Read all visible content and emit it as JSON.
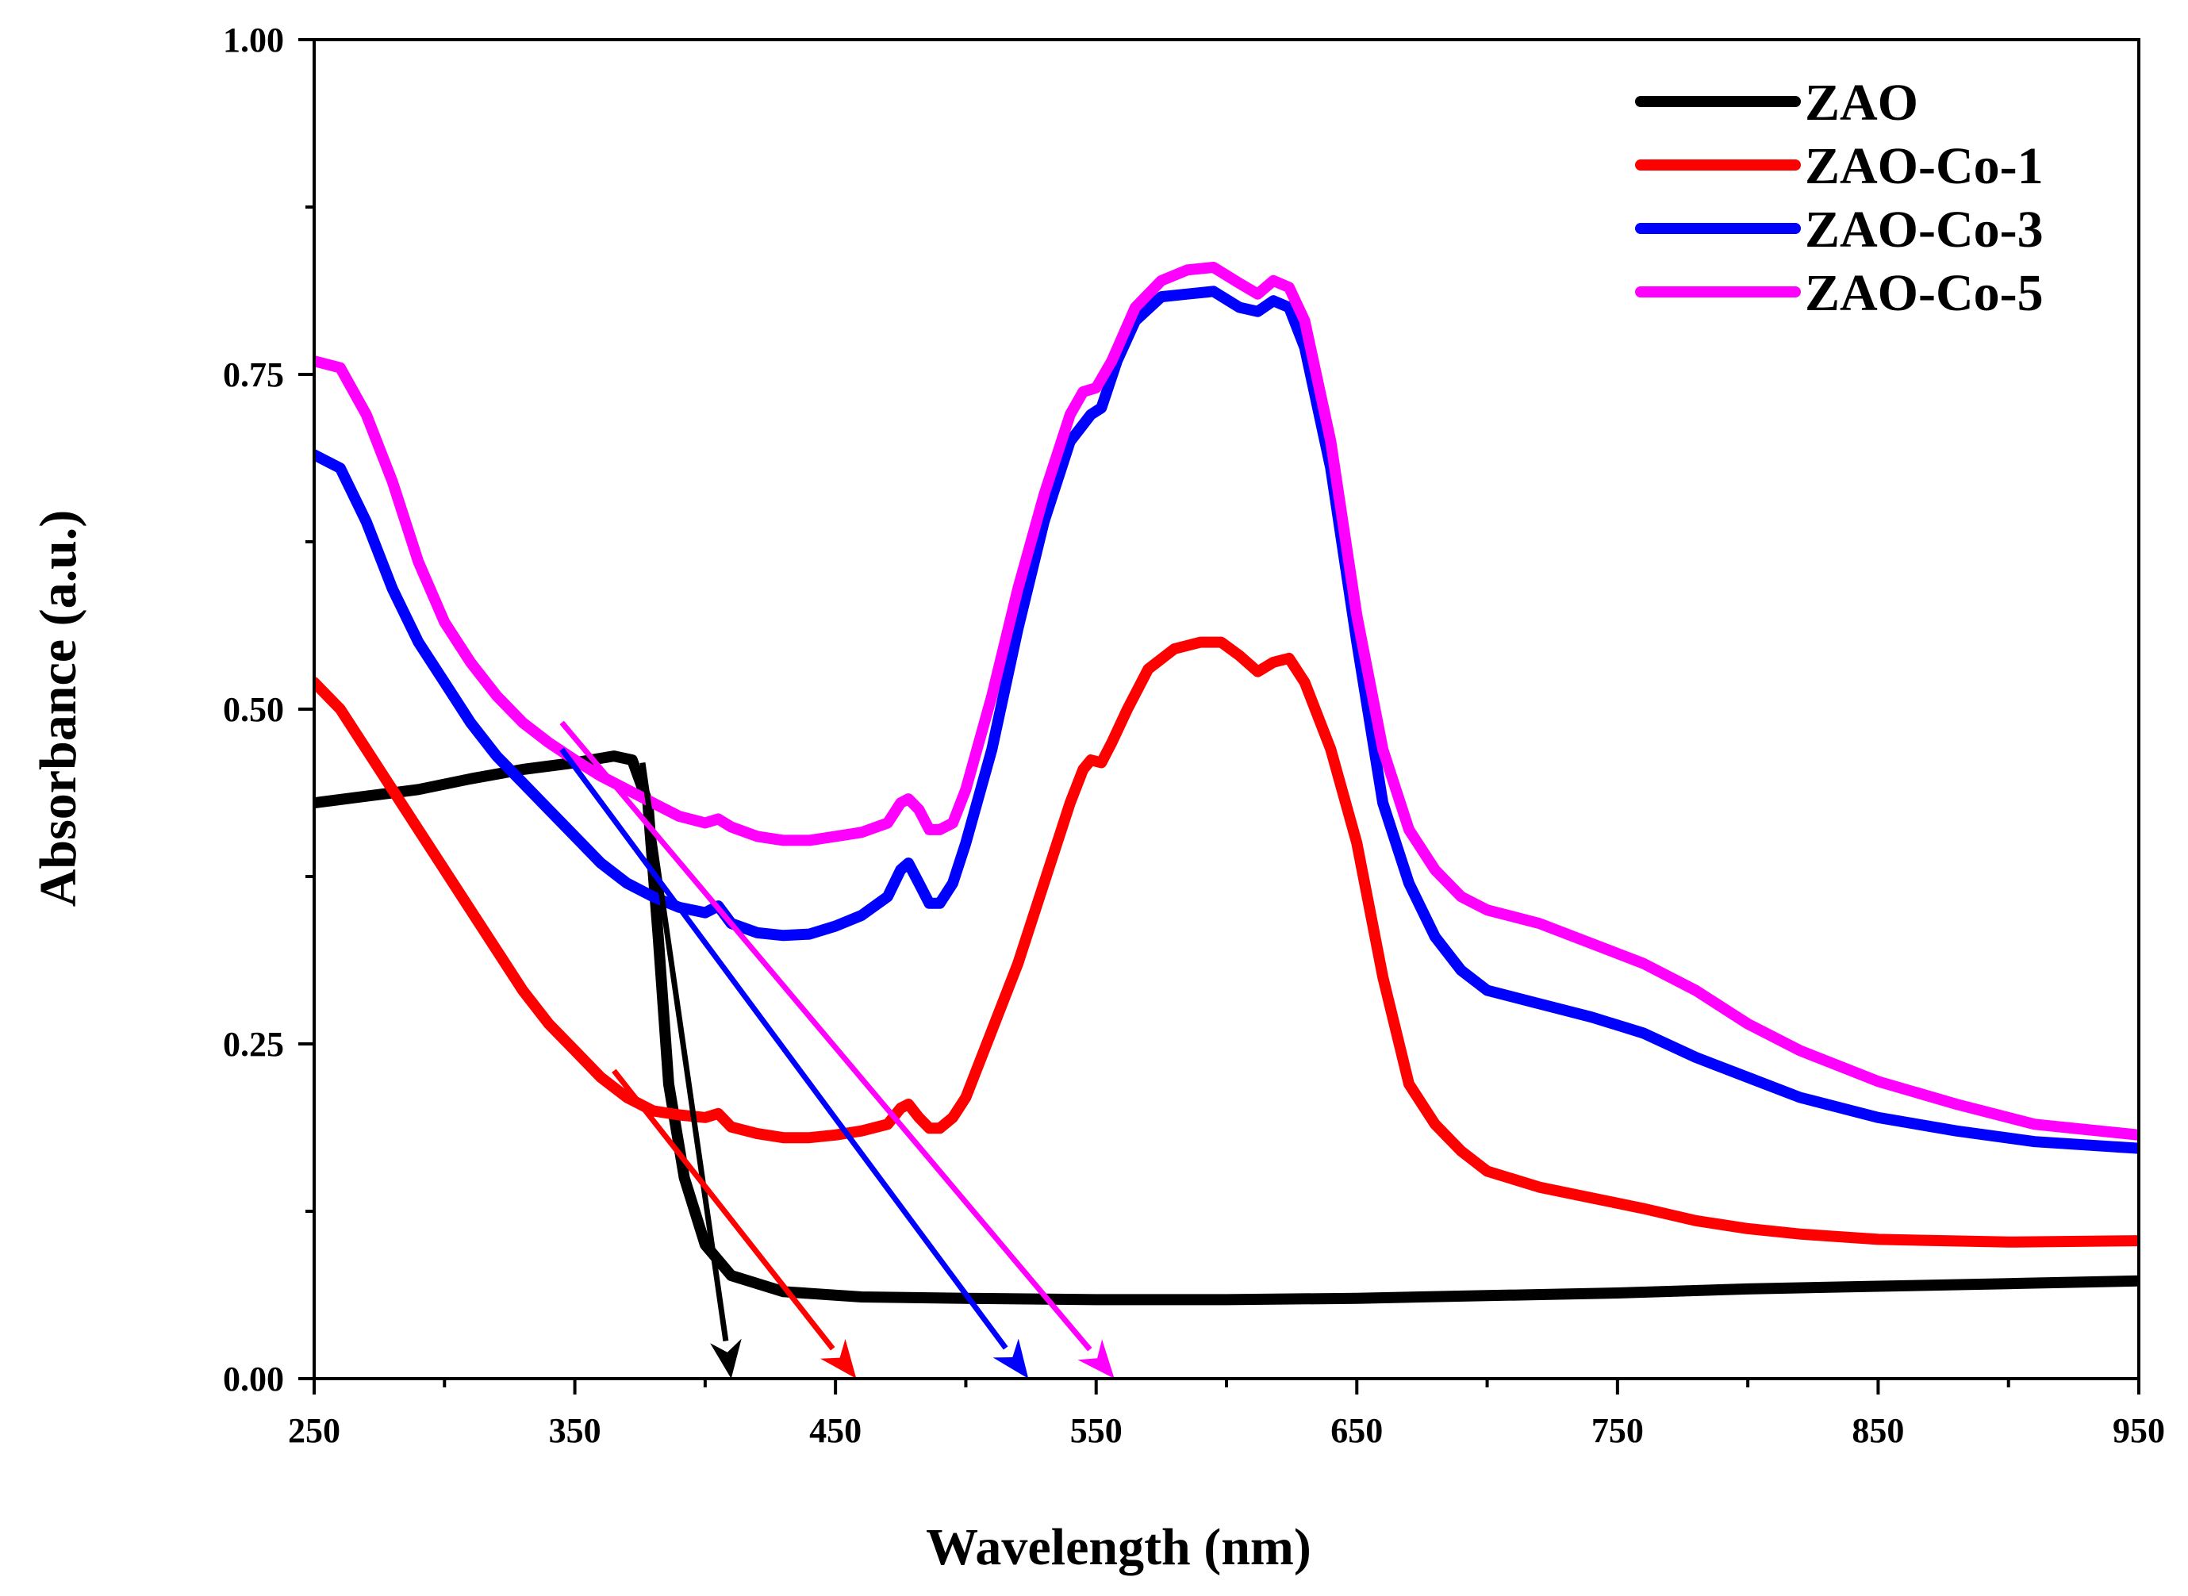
{
  "chart_data": {
    "type": "line",
    "title": "",
    "xlabel": "Wavelength (nm)",
    "ylabel": "Absorbance (a.u.)",
    "xlim": [
      250,
      950
    ],
    "ylim": [
      0,
      1
    ],
    "xticks": [
      250,
      350,
      450,
      550,
      650,
      750,
      850,
      950
    ],
    "yticks": [
      0,
      0.25,
      0.5,
      0.75,
      1
    ],
    "xtick_labels": [
      "250",
      "350",
      "450",
      "550",
      "650",
      "750",
      "850",
      "950"
    ],
    "ytick_labels": [
      "0.00",
      "0.25",
      "0.50",
      "0.75",
      "1.00"
    ],
    "grid": false,
    "legend_position": "top-right",
    "series": [
      {
        "name": "ZAO",
        "color": "#000000",
        "points": [
          [
            250,
            0.43
          ],
          [
            270,
            0.435
          ],
          [
            290,
            0.44
          ],
          [
            310,
            0.448
          ],
          [
            330,
            0.455
          ],
          [
            350,
            0.46
          ],
          [
            365,
            0.465
          ],
          [
            372,
            0.462
          ],
          [
            378,
            0.43
          ],
          [
            382,
            0.33
          ],
          [
            386,
            0.22
          ],
          [
            392,
            0.15
          ],
          [
            400,
            0.1
          ],
          [
            410,
            0.077
          ],
          [
            430,
            0.065
          ],
          [
            460,
            0.061
          ],
          [
            500,
            0.06
          ],
          [
            550,
            0.059
          ],
          [
            600,
            0.059
          ],
          [
            650,
            0.06
          ],
          [
            700,
            0.062
          ],
          [
            750,
            0.064
          ],
          [
            800,
            0.067
          ],
          [
            850,
            0.069
          ],
          [
            900,
            0.071
          ],
          [
            950,
            0.073
          ]
        ]
      },
      {
        "name": "ZAO-Co-1",
        "color": "#ff0000",
        "points": [
          [
            250,
            0.52
          ],
          [
            260,
            0.5
          ],
          [
            270,
            0.47
          ],
          [
            280,
            0.44
          ],
          [
            290,
            0.41
          ],
          [
            300,
            0.38
          ],
          [
            310,
            0.35
          ],
          [
            320,
            0.32
          ],
          [
            330,
            0.29
          ],
          [
            340,
            0.265
          ],
          [
            350,
            0.245
          ],
          [
            360,
            0.225
          ],
          [
            370,
            0.21
          ],
          [
            380,
            0.2
          ],
          [
            390,
            0.197
          ],
          [
            400,
            0.195
          ],
          [
            405,
            0.198
          ],
          [
            410,
            0.188
          ],
          [
            420,
            0.183
          ],
          [
            430,
            0.18
          ],
          [
            440,
            0.18
          ],
          [
            450,
            0.182
          ],
          [
            460,
            0.185
          ],
          [
            470,
            0.19
          ],
          [
            475,
            0.202
          ],
          [
            478,
            0.205
          ],
          [
            482,
            0.195
          ],
          [
            486,
            0.187
          ],
          [
            490,
            0.187
          ],
          [
            495,
            0.195
          ],
          [
            500,
            0.21
          ],
          [
            510,
            0.26
          ],
          [
            520,
            0.31
          ],
          [
            530,
            0.37
          ],
          [
            540,
            0.43
          ],
          [
            545,
            0.455
          ],
          [
            548,
            0.462
          ],
          [
            552,
            0.46
          ],
          [
            556,
            0.475
          ],
          [
            562,
            0.5
          ],
          [
            570,
            0.53
          ],
          [
            580,
            0.545
          ],
          [
            590,
            0.55
          ],
          [
            598,
            0.55
          ],
          [
            605,
            0.54
          ],
          [
            612,
            0.528
          ],
          [
            618,
            0.535
          ],
          [
            624,
            0.538
          ],
          [
            630,
            0.52
          ],
          [
            640,
            0.47
          ],
          [
            650,
            0.4
          ],
          [
            660,
            0.3
          ],
          [
            670,
            0.22
          ],
          [
            680,
            0.19
          ],
          [
            690,
            0.17
          ],
          [
            700,
            0.155
          ],
          [
            720,
            0.143
          ],
          [
            740,
            0.135
          ],
          [
            760,
            0.127
          ],
          [
            780,
            0.118
          ],
          [
            800,
            0.112
          ],
          [
            820,
            0.108
          ],
          [
            850,
            0.104
          ],
          [
            900,
            0.102
          ],
          [
            950,
            0.103
          ]
        ]
      },
      {
        "name": "ZAO-Co-3",
        "color": "#0000ff",
        "points": [
          [
            250,
            0.69
          ],
          [
            260,
            0.68
          ],
          [
            270,
            0.64
          ],
          [
            280,
            0.59
          ],
          [
            290,
            0.55
          ],
          [
            300,
            0.52
          ],
          [
            310,
            0.49
          ],
          [
            320,
            0.465
          ],
          [
            330,
            0.445
          ],
          [
            340,
            0.425
          ],
          [
            350,
            0.405
          ],
          [
            360,
            0.385
          ],
          [
            370,
            0.37
          ],
          [
            380,
            0.36
          ],
          [
            390,
            0.352
          ],
          [
            400,
            0.348
          ],
          [
            405,
            0.353
          ],
          [
            410,
            0.34
          ],
          [
            420,
            0.333
          ],
          [
            430,
            0.331
          ],
          [
            440,
            0.332
          ],
          [
            450,
            0.338
          ],
          [
            460,
            0.346
          ],
          [
            470,
            0.36
          ],
          [
            475,
            0.38
          ],
          [
            478,
            0.385
          ],
          [
            482,
            0.37
          ],
          [
            486,
            0.355
          ],
          [
            490,
            0.355
          ],
          [
            495,
            0.37
          ],
          [
            500,
            0.4
          ],
          [
            510,
            0.47
          ],
          [
            520,
            0.56
          ],
          [
            530,
            0.64
          ],
          [
            540,
            0.7
          ],
          [
            548,
            0.72
          ],
          [
            552,
            0.725
          ],
          [
            558,
            0.76
          ],
          [
            565,
            0.79
          ],
          [
            575,
            0.808
          ],
          [
            585,
            0.81
          ],
          [
            595,
            0.812
          ],
          [
            605,
            0.8
          ],
          [
            612,
            0.797
          ],
          [
            618,
            0.805
          ],
          [
            624,
            0.8
          ],
          [
            630,
            0.77
          ],
          [
            640,
            0.68
          ],
          [
            650,
            0.55
          ],
          [
            660,
            0.43
          ],
          [
            670,
            0.37
          ],
          [
            680,
            0.33
          ],
          [
            690,
            0.305
          ],
          [
            700,
            0.29
          ],
          [
            720,
            0.28
          ],
          [
            740,
            0.27
          ],
          [
            760,
            0.258
          ],
          [
            780,
            0.24
          ],
          [
            800,
            0.225
          ],
          [
            820,
            0.21
          ],
          [
            850,
            0.195
          ],
          [
            880,
            0.185
          ],
          [
            910,
            0.177
          ],
          [
            950,
            0.172
          ]
        ]
      },
      {
        "name": "ZAO-Co-5",
        "color": "#ff00ff",
        "points": [
          [
            250,
            0.76
          ],
          [
            260,
            0.755
          ],
          [
            270,
            0.72
          ],
          [
            280,
            0.67
          ],
          [
            290,
            0.61
          ],
          [
            300,
            0.565
          ],
          [
            310,
            0.535
          ],
          [
            320,
            0.51
          ],
          [
            330,
            0.49
          ],
          [
            340,
            0.475
          ],
          [
            350,
            0.462
          ],
          [
            360,
            0.45
          ],
          [
            370,
            0.44
          ],
          [
            380,
            0.43
          ],
          [
            390,
            0.42
          ],
          [
            400,
            0.415
          ],
          [
            405,
            0.418
          ],
          [
            410,
            0.412
          ],
          [
            420,
            0.405
          ],
          [
            430,
            0.402
          ],
          [
            440,
            0.402
          ],
          [
            450,
            0.405
          ],
          [
            460,
            0.408
          ],
          [
            470,
            0.415
          ],
          [
            475,
            0.43
          ],
          [
            478,
            0.433
          ],
          [
            482,
            0.425
          ],
          [
            486,
            0.41
          ],
          [
            490,
            0.41
          ],
          [
            495,
            0.415
          ],
          [
            500,
            0.44
          ],
          [
            510,
            0.51
          ],
          [
            520,
            0.59
          ],
          [
            530,
            0.66
          ],
          [
            540,
            0.72
          ],
          [
            545,
            0.737
          ],
          [
            550,
            0.74
          ],
          [
            556,
            0.76
          ],
          [
            565,
            0.8
          ],
          [
            575,
            0.82
          ],
          [
            585,
            0.828
          ],
          [
            595,
            0.83
          ],
          [
            605,
            0.818
          ],
          [
            612,
            0.81
          ],
          [
            618,
            0.82
          ],
          [
            624,
            0.815
          ],
          [
            630,
            0.79
          ],
          [
            640,
            0.7
          ],
          [
            650,
            0.57
          ],
          [
            660,
            0.47
          ],
          [
            670,
            0.41
          ],
          [
            680,
            0.38
          ],
          [
            690,
            0.36
          ],
          [
            700,
            0.35
          ],
          [
            720,
            0.34
          ],
          [
            740,
            0.325
          ],
          [
            760,
            0.31
          ],
          [
            780,
            0.29
          ],
          [
            800,
            0.265
          ],
          [
            820,
            0.245
          ],
          [
            850,
            0.222
          ],
          [
            880,
            0.205
          ],
          [
            910,
            0.19
          ],
          [
            950,
            0.182
          ]
        ]
      }
    ],
    "arrows": [
      {
        "series": "ZAO",
        "color": "#000000",
        "from": [
          376,
          0.46
        ],
        "to": [
          410,
          0.0
        ]
      },
      {
        "series": "ZAO-Co-1",
        "color": "#ff0000",
        "from": [
          365,
          0.23
        ],
        "to": [
          458,
          0.0
        ]
      },
      {
        "series": "ZAO-Co-3",
        "color": "#0000ff",
        "from": [
          345,
          0.47
        ],
        "to": [
          524,
          0.0
        ]
      },
      {
        "series": "ZAO-Co-5",
        "color": "#ff00ff",
        "from": [
          345,
          0.49
        ],
        "to": [
          557,
          0.0
        ]
      }
    ]
  }
}
